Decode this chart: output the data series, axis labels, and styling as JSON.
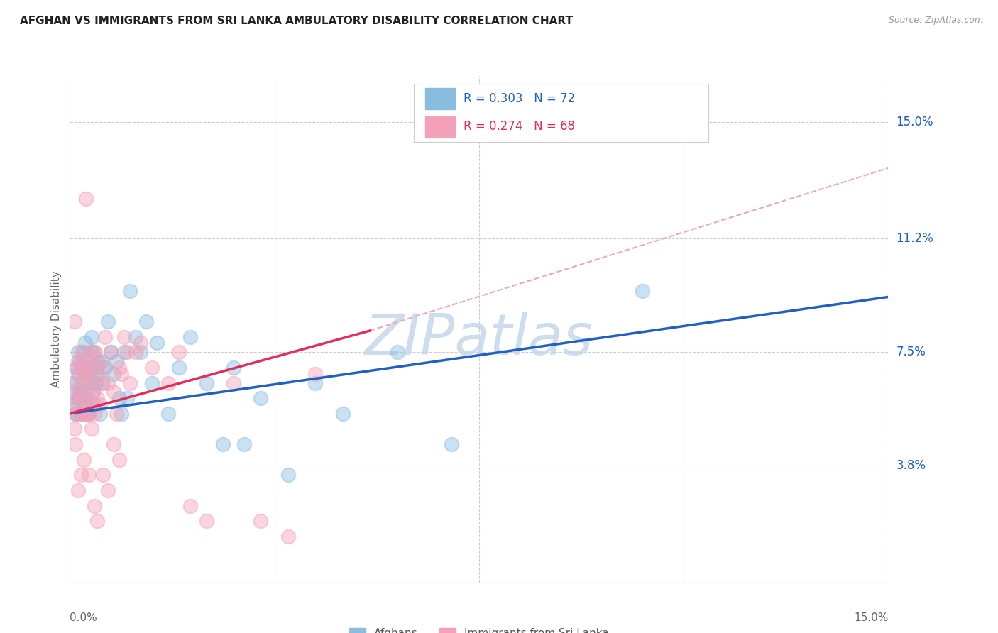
{
  "title": "AFGHAN VS IMMIGRANTS FROM SRI LANKA AMBULATORY DISABILITY CORRELATION CHART",
  "source": "Source: ZipAtlas.com",
  "ylabel": "Ambulatory Disability",
  "y_ticks": [
    3.8,
    7.5,
    11.2,
    15.0
  ],
  "y_tick_labels": [
    "3.8%",
    "7.5%",
    "11.2%",
    "15.0%"
  ],
  "xlim": [
    0.0,
    15.0
  ],
  "ylim": [
    0.0,
    16.5
  ],
  "afghan_color": "#89bde0",
  "sri_lanka_color": "#f4a0b8",
  "afghan_line_color": "#2060c0",
  "sri_lanka_line_color": "#e0305a",
  "sri_lanka_dash_color": "#e8aabb",
  "watermark_text": "ZIPatlas",
  "watermark_color": "#c5d8ec",
  "legend_afghan_label": "R = 0.303   N = 72",
  "legend_sri_label": "R = 0.274   N = 68",
  "bottom_legend": [
    "Afghans",
    "Immigrants from Sri Lanka"
  ],
  "afghan_scatter_x": [
    0.05,
    0.08,
    0.1,
    0.12,
    0.12,
    0.15,
    0.15,
    0.18,
    0.18,
    0.2,
    0.2,
    0.22,
    0.22,
    0.25,
    0.25,
    0.28,
    0.28,
    0.3,
    0.3,
    0.32,
    0.35,
    0.35,
    0.38,
    0.4,
    0.4,
    0.42,
    0.45,
    0.45,
    0.48,
    0.5,
    0.52,
    0.55,
    0.58,
    0.6,
    0.65,
    0.7,
    0.75,
    0.8,
    0.85,
    0.9,
    0.95,
    1.0,
    1.05,
    1.1,
    1.2,
    1.3,
    1.4,
    1.5,
    1.6,
    1.8,
    2.0,
    2.2,
    2.5,
    2.8,
    3.0,
    3.2,
    3.5,
    4.0,
    4.5,
    5.0,
    6.0,
    7.0,
    10.5,
    0.1,
    0.15,
    0.2,
    0.25,
    0.3,
    0.35,
    0.4,
    0.45,
    0.5
  ],
  "afghan_scatter_y": [
    6.5,
    5.8,
    6.2,
    7.0,
    5.5,
    6.8,
    7.5,
    6.0,
    7.2,
    5.5,
    6.5,
    7.0,
    6.2,
    5.8,
    7.5,
    6.5,
    7.8,
    6.0,
    5.5,
    7.2,
    6.8,
    5.5,
    7.0,
    6.5,
    8.0,
    6.2,
    5.8,
    7.5,
    6.5,
    7.0,
    6.8,
    5.5,
    7.2,
    6.5,
    7.0,
    8.5,
    7.5,
    6.8,
    7.2,
    6.0,
    5.5,
    7.5,
    6.0,
    9.5,
    8.0,
    7.5,
    8.5,
    6.5,
    7.8,
    5.5,
    7.0,
    8.0,
    6.5,
    4.5,
    7.0,
    4.5,
    6.0,
    3.5,
    6.5,
    5.5,
    7.5,
    4.5,
    9.5,
    5.5,
    6.0,
    6.2,
    6.8,
    5.8,
    7.0,
    7.5,
    6.5,
    7.2
  ],
  "sri_lanka_scatter_x": [
    0.05,
    0.08,
    0.1,
    0.12,
    0.12,
    0.15,
    0.15,
    0.18,
    0.18,
    0.2,
    0.2,
    0.22,
    0.25,
    0.25,
    0.28,
    0.3,
    0.3,
    0.32,
    0.35,
    0.38,
    0.4,
    0.4,
    0.42,
    0.45,
    0.45,
    0.48,
    0.5,
    0.52,
    0.55,
    0.58,
    0.6,
    0.65,
    0.7,
    0.75,
    0.8,
    0.85,
    0.9,
    0.95,
    1.0,
    1.05,
    1.1,
    1.2,
    1.3,
    1.5,
    1.8,
    2.0,
    2.2,
    2.5,
    3.0,
    3.5,
    4.0,
    4.5,
    0.3,
    0.4,
    0.08,
    0.1,
    0.15,
    0.2,
    0.25,
    0.3,
    0.35,
    0.4,
    0.45,
    0.5,
    0.6,
    0.7,
    0.8,
    0.9
  ],
  "sri_lanka_scatter_y": [
    6.0,
    8.5,
    5.5,
    6.5,
    7.0,
    5.8,
    7.2,
    6.2,
    6.8,
    5.5,
    7.5,
    6.0,
    7.0,
    6.5,
    5.5,
    6.8,
    7.2,
    6.0,
    5.5,
    7.0,
    6.5,
    5.8,
    6.2,
    7.5,
    5.5,
    6.8,
    6.0,
    7.2,
    5.8,
    6.5,
    7.0,
    8.0,
    6.5,
    7.5,
    6.2,
    5.5,
    7.0,
    6.8,
    8.0,
    7.5,
    6.5,
    7.5,
    7.8,
    7.0,
    6.5,
    7.5,
    2.5,
    2.0,
    6.5,
    2.0,
    1.5,
    6.8,
    12.5,
    7.5,
    5.0,
    4.5,
    3.0,
    3.5,
    4.0,
    5.5,
    3.5,
    5.0,
    2.5,
    2.0,
    3.5,
    3.0,
    4.5,
    4.0
  ],
  "afghan_line": [
    0.0,
    15.0,
    5.5,
    9.3
  ],
  "sri_lanka_solid_line": [
    0.0,
    5.5,
    5.5,
    8.2
  ],
  "sri_lanka_dash_line": [
    5.5,
    15.0,
    8.2,
    13.5
  ]
}
